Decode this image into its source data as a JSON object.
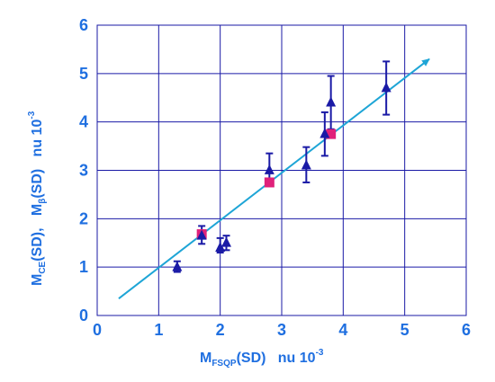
{
  "chart_data": {
    "type": "scatter",
    "title": "",
    "xlim": [
      0,
      6
    ],
    "ylim": [
      0,
      6
    ],
    "x_ticks": [
      "0",
      "1",
      "2",
      "3",
      "4",
      "5",
      "6"
    ],
    "y_ticks": [
      "0",
      "1",
      "2",
      "3",
      "4",
      "5",
      "6"
    ],
    "grid": true,
    "xlabel": {
      "main": "M",
      "subscript": "FSQP",
      "rest": "(SD)   nu 10",
      "superscript": "-3"
    },
    "ylabel": {
      "main1": "M",
      "subscript1": "CE",
      "mid": "(SD),   M",
      "subscript2": "β",
      "rest": "(SD)   nu 10",
      "superscript": "-3"
    },
    "series": [
      {
        "marker": "triangle",
        "color": "#1a1aa6",
        "points": [
          {
            "x": 1.3,
            "y": 1.0,
            "err_lo": 0.9,
            "err_hi": 1.12
          },
          {
            "x": 1.7,
            "y": 1.65,
            "err_lo": 1.48,
            "err_hi": 1.85
          },
          {
            "x": 2.0,
            "y": 1.4,
            "err_lo": 1.3,
            "err_hi": 1.6
          },
          {
            "x": 2.1,
            "y": 1.5,
            "err_lo": 1.35,
            "err_hi": 1.65
          },
          {
            "x": 2.8,
            "y": 3.0,
            "err_lo": 2.7,
            "err_hi": 3.35
          },
          {
            "x": 3.4,
            "y": 3.1,
            "err_lo": 2.75,
            "err_hi": 3.48
          },
          {
            "x": 3.7,
            "y": 3.75,
            "err_lo": 3.3,
            "err_hi": 4.2
          },
          {
            "x": 3.8,
            "y": 4.4,
            "err_lo": 3.85,
            "err_hi": 4.95
          },
          {
            "x": 4.7,
            "y": 4.7,
            "err_lo": 4.15,
            "err_hi": 5.25
          }
        ]
      },
      {
        "marker": "square",
        "color": "#e0217a",
        "points": [
          {
            "x": 1.7,
            "y": 1.68
          },
          {
            "x": 2.8,
            "y": 2.75
          },
          {
            "x": 3.8,
            "y": 3.75
          }
        ]
      }
    ],
    "trend_line": {
      "color": "#1ea5d6",
      "x": [
        0.35,
        5.4
      ],
      "y": [
        0.35,
        5.3
      ],
      "arrow": true
    },
    "colors": {
      "axis_text": "#1f6fe0",
      "grid": "#1a1aa6",
      "frame": "#1a1aa6"
    }
  }
}
